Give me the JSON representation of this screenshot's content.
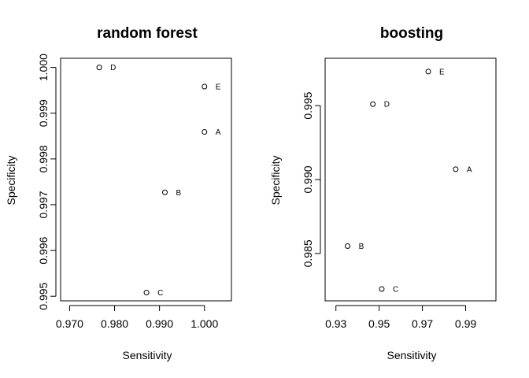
{
  "chart_data": [
    {
      "type": "scatter",
      "title": "random forest",
      "xlabel": "Sensitivity",
      "ylabel": "Specificity",
      "xlim": [
        0.968,
        1.006
      ],
      "ylim": [
        0.9949,
        1.0002
      ],
      "xticks": [
        {
          "value": 0.97,
          "label": "0.970"
        },
        {
          "value": 0.98,
          "label": "0.980"
        },
        {
          "value": 0.99,
          "label": "0.990"
        },
        {
          "value": 1.0,
          "label": "1.000"
        }
      ],
      "yticks": [
        {
          "value": 0.995,
          "label": "0.995"
        },
        {
          "value": 0.996,
          "label": "0.996"
        },
        {
          "value": 0.997,
          "label": "0.997"
        },
        {
          "value": 0.998,
          "label": "0.998"
        },
        {
          "value": 0.999,
          "label": "0.999"
        },
        {
          "value": 1.0,
          "label": "1.000"
        }
      ],
      "points": [
        {
          "label": "D",
          "x": 0.9766,
          "y": 1.0
        },
        {
          "label": "E",
          "x": 1.0,
          "y": 0.99958
        },
        {
          "label": "A",
          "x": 1.0,
          "y": 0.99859
        },
        {
          "label": "B",
          "x": 0.9912,
          "y": 0.99727
        },
        {
          "label": "C",
          "x": 0.9871,
          "y": 0.99508
        }
      ]
    },
    {
      "type": "scatter",
      "title": "boosting",
      "xlabel": "Sensitivity",
      "ylabel": "Specificity",
      "xlim": [
        0.925,
        1.004
      ],
      "ylim": [
        0.9818,
        0.9982
      ],
      "xticks": [
        {
          "value": 0.93,
          "label": "0.93"
        },
        {
          "value": 0.95,
          "label": "0.95"
        },
        {
          "value": 0.97,
          "label": "0.97"
        },
        {
          "value": 0.99,
          "label": "0.99"
        }
      ],
      "yticks": [
        {
          "value": 0.985,
          "label": "0.985"
        },
        {
          "value": 0.99,
          "label": "0.990"
        },
        {
          "value": 0.995,
          "label": "0.995"
        }
      ],
      "points": [
        {
          "label": "E",
          "x": 0.9727,
          "y": 0.9973
        },
        {
          "label": "D",
          "x": 0.9471,
          "y": 0.9951
        },
        {
          "label": "A",
          "x": 0.9854,
          "y": 0.9907
        },
        {
          "label": "B",
          "x": 0.9354,
          "y": 0.9855
        },
        {
          "label": "C",
          "x": 0.9512,
          "y": 0.9826
        }
      ]
    }
  ]
}
